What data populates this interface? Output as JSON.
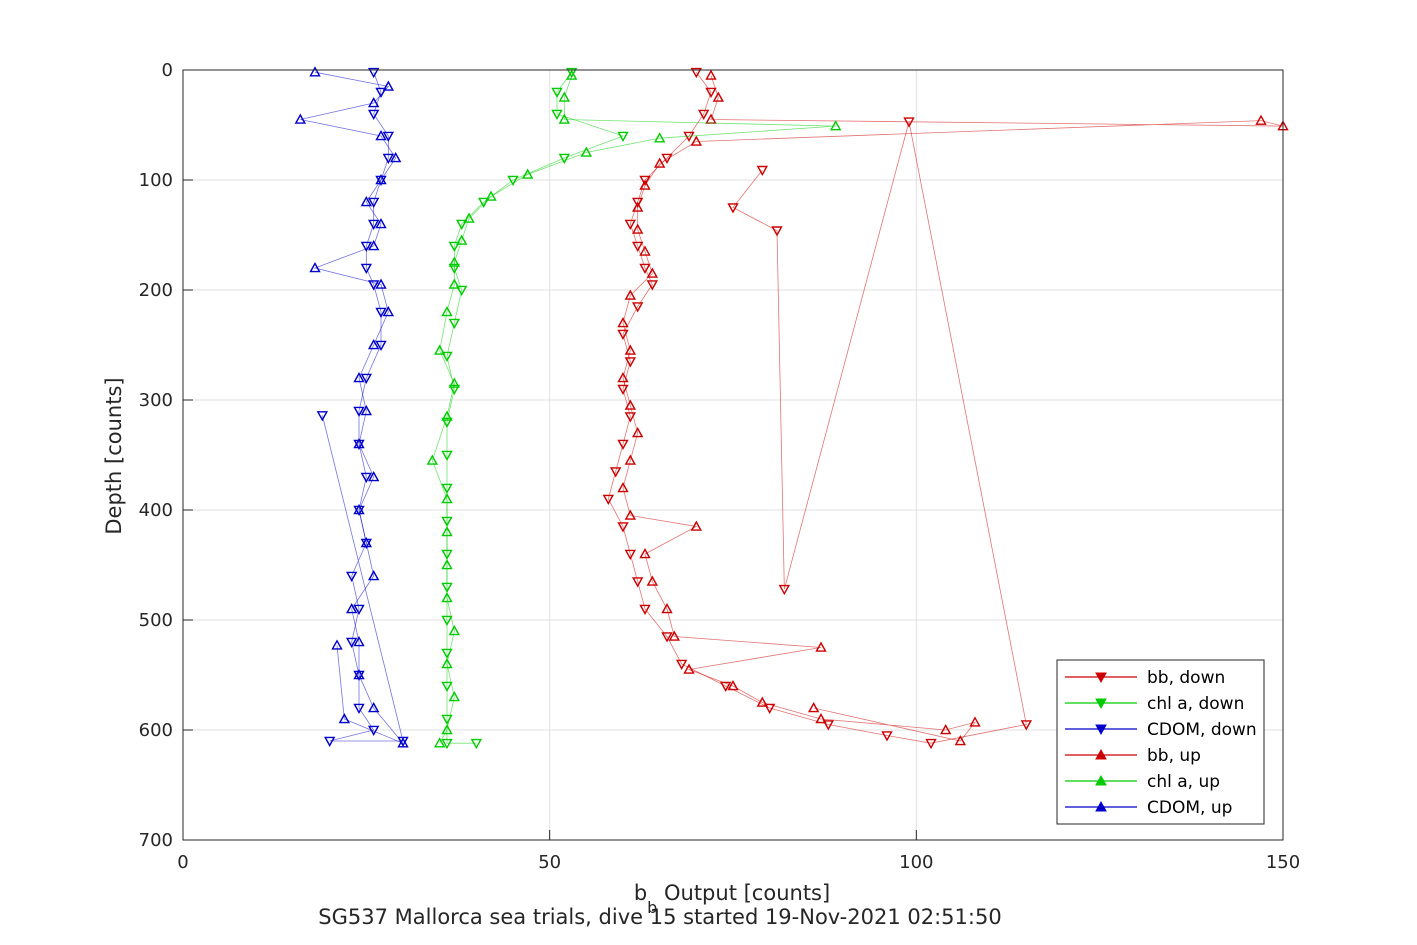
{
  "chart_data": {
    "type": "scatter",
    "title": "",
    "caption": "SG537 Mallorca sea trials, dive 15 started 19-Nov-2021 02:51:50",
    "xlabel_main": "b",
    "xlabel_sub": "b",
    "xlabel_rest": " Output [counts]",
    "ylabel": "Depth [counts]",
    "xlim": [
      0,
      150
    ],
    "ylim": [
      0,
      700
    ],
    "y_reversed": true,
    "grid": true,
    "x_ticks": [
      0,
      50,
      100,
      150
    ],
    "y_ticks": [
      0,
      100,
      200,
      300,
      400,
      500,
      600,
      700
    ],
    "x_tick_labels": [
      "0",
      "50",
      "100",
      "150"
    ],
    "y_tick_labels": [
      "0",
      "100",
      "200",
      "300",
      "400",
      "500",
      "600",
      "700"
    ],
    "legend_position": "bottom-right",
    "series": [
      {
        "name": "bb, down",
        "color": "#cc0000",
        "marker": "triangle-down",
        "points": [
          [
            70,
            2
          ],
          [
            72,
            20
          ],
          [
            71,
            40
          ],
          [
            69,
            60
          ],
          [
            66,
            80
          ],
          [
            63,
            100
          ],
          [
            62,
            120
          ],
          [
            61,
            140
          ],
          [
            62,
            160
          ],
          [
            63,
            180
          ],
          [
            64,
            195
          ],
          [
            62,
            215
          ],
          [
            60,
            240
          ],
          [
            61,
            265
          ],
          [
            60,
            290
          ],
          [
            61,
            315
          ],
          [
            60,
            340
          ],
          [
            59,
            365
          ],
          [
            58,
            390
          ],
          [
            60,
            415
          ],
          [
            61,
            440
          ],
          [
            62,
            465
          ],
          [
            63,
            490
          ],
          [
            66,
            515
          ],
          [
            68,
            540
          ],
          [
            74,
            560
          ],
          [
            80,
            580
          ],
          [
            88,
            595
          ],
          [
            96,
            605
          ],
          [
            102,
            612
          ],
          [
            115,
            595
          ],
          [
            99,
            47
          ],
          [
            82,
            472
          ],
          [
            81,
            146
          ],
          [
            75,
            125
          ],
          [
            79,
            91
          ]
        ]
      },
      {
        "name": "chl a, down",
        "color": "#00cc00",
        "marker": "triangle-down",
        "points": [
          [
            53,
            2
          ],
          [
            51,
            20
          ],
          [
            51,
            40
          ],
          [
            60,
            60
          ],
          [
            52,
            80
          ],
          [
            45,
            100
          ],
          [
            41,
            120
          ],
          [
            38,
            140
          ],
          [
            37,
            160
          ],
          [
            37,
            180
          ],
          [
            38,
            200
          ],
          [
            37,
            230
          ],
          [
            36,
            260
          ],
          [
            37,
            290
          ],
          [
            36,
            320
          ],
          [
            36,
            350
          ],
          [
            36,
            380
          ],
          [
            36,
            410
          ],
          [
            36,
            440
          ],
          [
            36,
            470
          ],
          [
            36,
            500
          ],
          [
            36,
            530
          ],
          [
            36,
            560
          ],
          [
            36,
            590
          ],
          [
            36,
            612
          ],
          [
            40,
            612
          ]
        ]
      },
      {
        "name": "CDOM, down",
        "color": "#0000cc",
        "marker": "triangle-down",
        "points": [
          [
            26,
            2
          ],
          [
            27,
            20
          ],
          [
            26,
            40
          ],
          [
            28,
            60
          ],
          [
            28,
            80
          ],
          [
            27,
            100
          ],
          [
            26,
            120
          ],
          [
            26,
            140
          ],
          [
            25,
            160
          ],
          [
            25,
            180
          ],
          [
            26,
            195
          ],
          [
            27,
            220
          ],
          [
            27,
            250
          ],
          [
            25,
            280
          ],
          [
            24,
            310
          ],
          [
            24,
            340
          ],
          [
            25,
            370
          ],
          [
            24,
            400
          ],
          [
            25,
            430
          ],
          [
            23,
            460
          ],
          [
            24,
            490
          ],
          [
            23,
            520
          ],
          [
            24,
            550
          ],
          [
            24,
            580
          ],
          [
            26,
            600
          ],
          [
            20,
            610
          ],
          [
            30,
            610
          ],
          [
            19,
            314
          ]
        ]
      },
      {
        "name": "bb, up",
        "color": "#cc0000",
        "marker": "triangle-up",
        "points": [
          [
            72,
            5
          ],
          [
            73,
            25
          ],
          [
            72,
            45
          ],
          [
            150,
            51
          ],
          [
            147,
            46
          ],
          [
            70,
            65
          ],
          [
            65,
            85
          ],
          [
            63,
            105
          ],
          [
            62,
            125
          ],
          [
            62,
            145
          ],
          [
            63,
            165
          ],
          [
            64,
            185
          ],
          [
            61,
            205
          ],
          [
            60,
            230
          ],
          [
            61,
            255
          ],
          [
            60,
            280
          ],
          [
            61,
            305
          ],
          [
            62,
            330
          ],
          [
            61,
            355
          ],
          [
            60,
            380
          ],
          [
            61,
            405
          ],
          [
            70,
            415
          ],
          [
            63,
            440
          ],
          [
            64,
            465
          ],
          [
            66,
            490
          ],
          [
            67,
            515
          ],
          [
            87,
            525
          ],
          [
            69,
            545
          ],
          [
            75,
            560
          ],
          [
            79,
            575
          ],
          [
            87,
            590
          ],
          [
            104,
            600
          ],
          [
            108,
            593
          ],
          [
            106,
            610
          ],
          [
            86,
            580
          ]
        ]
      },
      {
        "name": "chl a, up",
        "color": "#00cc00",
        "marker": "triangle-up",
        "points": [
          [
            53,
            5
          ],
          [
            52,
            25
          ],
          [
            52,
            45
          ],
          [
            89,
            51
          ],
          [
            65,
            62
          ],
          [
            55,
            75
          ],
          [
            47,
            95
          ],
          [
            42,
            115
          ],
          [
            39,
            135
          ],
          [
            38,
            155
          ],
          [
            37,
            175
          ],
          [
            37,
            195
          ],
          [
            36,
            220
          ],
          [
            35,
            255
          ],
          [
            37,
            285
          ],
          [
            36,
            315
          ],
          [
            34,
            355
          ],
          [
            36,
            390
          ],
          [
            36,
            420
          ],
          [
            36,
            450
          ],
          [
            36,
            480
          ],
          [
            37,
            510
          ],
          [
            36,
            540
          ],
          [
            37,
            570
          ],
          [
            36,
            600
          ],
          [
            35,
            612
          ]
        ]
      },
      {
        "name": "CDOM, up",
        "color": "#0000cc",
        "marker": "triangle-up",
        "points": [
          [
            18,
            2
          ],
          [
            28,
            15
          ],
          [
            26,
            30
          ],
          [
            16,
            45
          ],
          [
            27,
            60
          ],
          [
            29,
            80
          ],
          [
            27,
            100
          ],
          [
            25,
            120
          ],
          [
            27,
            140
          ],
          [
            26,
            160
          ],
          [
            18,
            180
          ],
          [
            27,
            195
          ],
          [
            28,
            220
          ],
          [
            26,
            250
          ],
          [
            24,
            280
          ],
          [
            25,
            310
          ],
          [
            24,
            340
          ],
          [
            26,
            370
          ],
          [
            24,
            400
          ],
          [
            25,
            430
          ],
          [
            26,
            460
          ],
          [
            23,
            490
          ],
          [
            24,
            520
          ],
          [
            24,
            550
          ],
          [
            26,
            580
          ],
          [
            30,
            612
          ],
          [
            22,
            590
          ],
          [
            21,
            523
          ]
        ]
      }
    ]
  }
}
